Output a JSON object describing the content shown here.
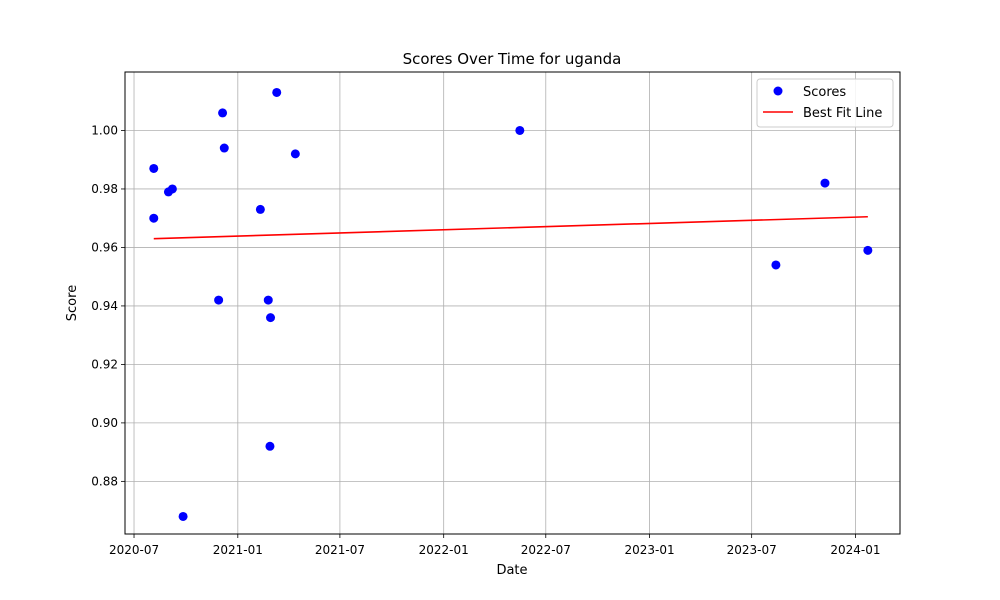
{
  "chart_data": {
    "type": "scatter",
    "title": "Scores Over Time for uganda",
    "xlabel": "Date",
    "ylabel": "Score",
    "x_axis_type": "date",
    "xlim": [
      "2020-06-15",
      "2024-03-20"
    ],
    "ylim": [
      0.862,
      1.02
    ],
    "x_ticks": [
      "2020-07-01",
      "2021-01-01",
      "2021-07-01",
      "2022-01-01",
      "2022-07-01",
      "2023-01-01",
      "2023-07-01",
      "2024-01-01"
    ],
    "x_tick_labels": [
      "2020-07",
      "2021-01",
      "2021-07",
      "2022-01",
      "2022-07",
      "2023-01",
      "2023-07",
      "2024-01"
    ],
    "y_ticks": [
      0.88,
      0.9,
      0.92,
      0.94,
      0.96,
      0.98,
      1.0
    ],
    "y_tick_labels": [
      "0.88",
      "0.90",
      "0.92",
      "0.94",
      "0.96",
      "0.98",
      "1.00"
    ],
    "grid": true,
    "legend_position": "top-right",
    "series": [
      {
        "name": "Scores",
        "kind": "scatter",
        "color": "#0000ff",
        "points": [
          {
            "x": "2020-08-05",
            "y": 0.987
          },
          {
            "x": "2020-08-05",
            "y": 0.97
          },
          {
            "x": "2020-08-31",
            "y": 0.979
          },
          {
            "x": "2020-09-07",
            "y": 0.98
          },
          {
            "x": "2020-09-26",
            "y": 0.868
          },
          {
            "x": "2020-11-28",
            "y": 0.942
          },
          {
            "x": "2020-12-05",
            "y": 1.006
          },
          {
            "x": "2020-12-08",
            "y": 0.994
          },
          {
            "x": "2021-02-10",
            "y": 0.973
          },
          {
            "x": "2021-02-24",
            "y": 0.942
          },
          {
            "x": "2021-02-27",
            "y": 0.892
          },
          {
            "x": "2021-02-28",
            "y": 0.936
          },
          {
            "x": "2021-03-11",
            "y": 1.013
          },
          {
            "x": "2021-04-13",
            "y": 0.992
          },
          {
            "x": "2022-05-16",
            "y": 1.0
          },
          {
            "x": "2023-08-13",
            "y": 0.954
          },
          {
            "x": "2023-11-08",
            "y": 0.982
          },
          {
            "x": "2024-01-23",
            "y": 0.959
          }
        ]
      },
      {
        "name": "Best Fit Line",
        "kind": "line",
        "color": "#ff0000",
        "points": [
          {
            "x": "2020-08-05",
            "y": 0.963
          },
          {
            "x": "2024-01-23",
            "y": 0.9705
          }
        ]
      }
    ]
  }
}
